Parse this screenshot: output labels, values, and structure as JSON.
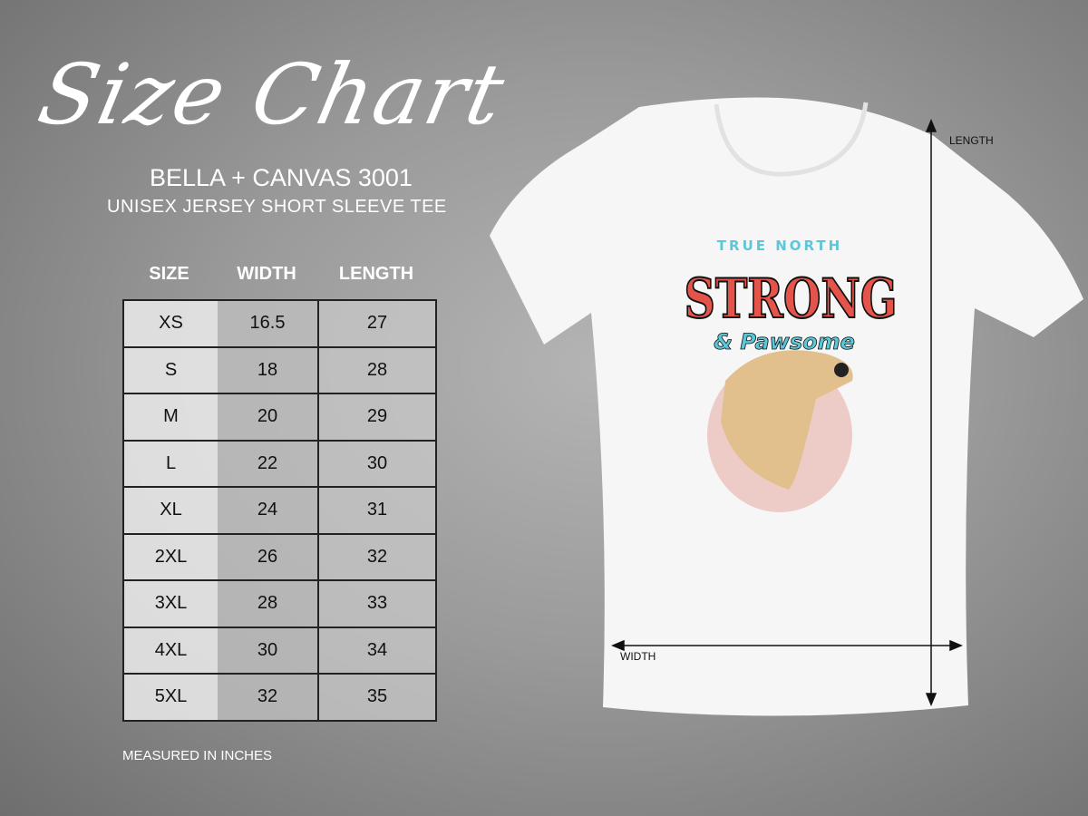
{
  "title": "Size Chart",
  "brand": "BELLA + CANVAS 3001",
  "subtitle": "UNISEX JERSEY SHORT SLEEVE TEE",
  "table": {
    "headers": [
      "SIZE",
      "WIDTH",
      "LENGTH"
    ],
    "rows": [
      [
        "XS",
        "16.5",
        "27"
      ],
      [
        "S",
        "18",
        "28"
      ],
      [
        "M",
        "20",
        "29"
      ],
      [
        "L",
        "22",
        "30"
      ],
      [
        "XL",
        "24",
        "31"
      ],
      [
        "2XL",
        "26",
        "32"
      ],
      [
        "3XL",
        "28",
        "33"
      ],
      [
        "4XL",
        "30",
        "34"
      ],
      [
        "5XL",
        "32",
        "35"
      ]
    ]
  },
  "note": "MEASURED IN INCHES",
  "shirt": {
    "length_label": "LENGTH",
    "width_label": "WIDTH",
    "graphic": {
      "line1": "TRUE NORTH",
      "line2": "STRONG",
      "line3": "& Pawsome"
    },
    "colors": {
      "shirt": "#f7f7f7",
      "red": "#e4544a",
      "cyan": "#5cc7d8"
    }
  }
}
